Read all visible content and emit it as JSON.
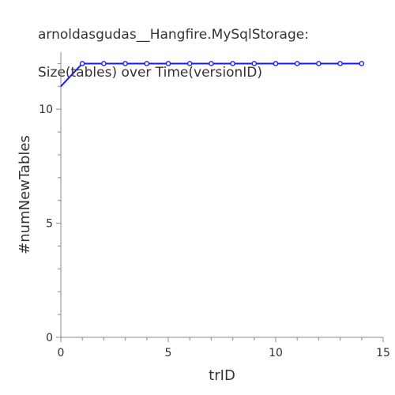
{
  "chart_data": {
    "type": "line",
    "title_line1": "arnoldasgudas__Hangfire.MySqlStorage:",
    "title_line2": "Size(tables) over Time(versionID)",
    "xlabel": "trID",
    "ylabel": "#numNewTables",
    "xlim": [
      0,
      15
    ],
    "ylim": [
      0,
      12.5
    ],
    "x_ticks": [
      0,
      5,
      10,
      15
    ],
    "x_ticks_minor": [
      1,
      2,
      3,
      4,
      6,
      7,
      8,
      9,
      11,
      12,
      13,
      14
    ],
    "y_ticks": [
      0,
      5,
      10
    ],
    "y_ticks_minor": [
      1,
      2,
      3,
      4,
      6,
      7,
      8,
      9,
      11,
      12
    ],
    "grid": false,
    "series": [
      {
        "color": "#1a1aee",
        "x": [
          0,
          1,
          2,
          3,
          4,
          5,
          6,
          7,
          8,
          9,
          10,
          11,
          12,
          13,
          14
        ],
        "y": [
          11,
          12,
          12,
          12,
          12,
          12,
          12,
          12,
          12,
          12,
          12,
          12,
          12,
          12,
          12
        ],
        "markers_from_index": 1
      }
    ]
  }
}
